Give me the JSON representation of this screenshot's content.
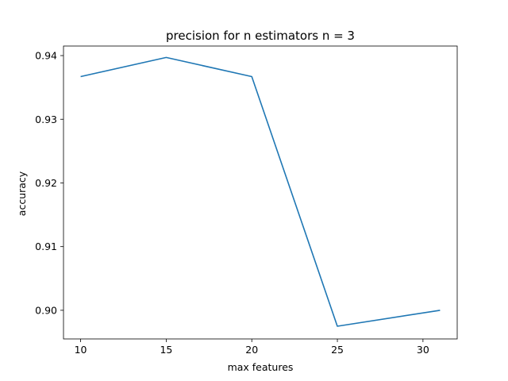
{
  "chart_data": {
    "type": "line",
    "title": "precision for n estimators n = 3",
    "xlabel": "max features",
    "ylabel": "accuracy",
    "xlim": [
      9,
      32
    ],
    "ylim": [
      0.8955,
      0.9415
    ],
    "xticks": [
      10,
      15,
      20,
      25,
      30
    ],
    "xtick_labels": [
      "10",
      "15",
      "20",
      "25",
      "30"
    ],
    "yticks": [
      0.9,
      0.91,
      0.92,
      0.93,
      0.94
    ],
    "ytick_labels": [
      "0.90",
      "0.91",
      "0.92",
      "0.93",
      "0.94"
    ],
    "grid": false,
    "series": [
      {
        "x": [
          10,
          15,
          20,
          25,
          31
        ],
        "y": [
          0.9367,
          0.9397,
          0.9367,
          0.8975,
          0.9
        ],
        "color": "#1f77b4"
      }
    ]
  }
}
